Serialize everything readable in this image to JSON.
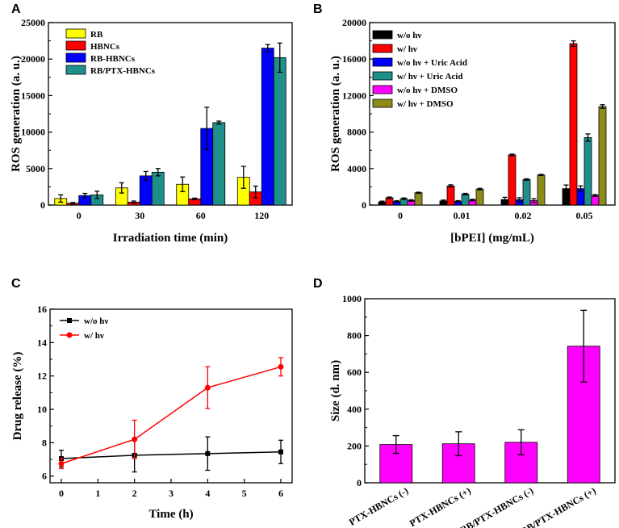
{
  "chart_data": [
    {
      "panel": "A",
      "type": "bar",
      "title": "",
      "xlabel": "Irradiation time (min)",
      "ylabel": "ROS generation (a. u.)",
      "ylim": [
        0,
        25000
      ],
      "yticks": [
        "0",
        "5000",
        "10000",
        "15000",
        "20000",
        "25000"
      ],
      "categories": [
        "0",
        "30",
        "60",
        "120"
      ],
      "legend_position": "top-left",
      "series": [
        {
          "name": "RB",
          "color": "#ffff00",
          "values": [
            900,
            2350,
            2850,
            3800
          ],
          "errors": [
            500,
            700,
            1000,
            1500
          ]
        },
        {
          "name": "HBNCs",
          "color": "#ff0000",
          "values": [
            250,
            400,
            850,
            1800
          ],
          "errors": [
            100,
            150,
            100,
            800
          ]
        },
        {
          "name": "RB-HBNCs",
          "color": "#0000ff",
          "values": [
            1300,
            4000,
            10500,
            21500
          ],
          "errors": [
            300,
            600,
            2900,
            500
          ]
        },
        {
          "name": "RB/PTX-HBNCs",
          "color": "#1f8f8a",
          "values": [
            1400,
            4500,
            11300,
            20200
          ],
          "errors": [
            500,
            500,
            200,
            2000
          ]
        }
      ]
    },
    {
      "panel": "B",
      "type": "bar",
      "title": "",
      "xlabel": "[bPEI] (mg/mL)",
      "ylabel": "ROS generation (a. u.)",
      "ylim": [
        0,
        20000
      ],
      "yticks": [
        "0",
        "4000",
        "8000",
        "12000",
        "16000",
        "20000"
      ],
      "categories": [
        "0",
        "0.01",
        "0.02",
        "0.05"
      ],
      "legend_position": "top-left",
      "series": [
        {
          "name": "w/o hν",
          "color": "#000000",
          "values": [
            350,
            450,
            600,
            1800
          ],
          "errors": [
            80,
            100,
            250,
            400
          ]
        },
        {
          "name": "w/   hν",
          "color": "#ff0000",
          "values": [
            800,
            2100,
            5500,
            17700
          ],
          "errors": [
            80,
            120,
            80,
            300
          ]
        },
        {
          "name": "w/o hν + Uric Acid",
          "color": "#0000ff",
          "values": [
            400,
            400,
            600,
            1800
          ],
          "errors": [
            80,
            80,
            200,
            300
          ]
        },
        {
          "name": "w/   hν + Uric Acid",
          "color": "#1f8f8a",
          "values": [
            700,
            1200,
            2800,
            7400
          ],
          "errors": [
            80,
            80,
            80,
            400
          ]
        },
        {
          "name": "w/o hν + DMSO",
          "color": "#ff00ff",
          "values": [
            500,
            550,
            500,
            1050
          ],
          "errors": [
            80,
            80,
            200,
            100
          ]
        },
        {
          "name": "w/   hν + DMSO",
          "color": "#8b8b1a",
          "values": [
            1350,
            1750,
            3300,
            10800
          ],
          "errors": [
            60,
            80,
            60,
            200
          ]
        }
      ]
    },
    {
      "panel": "C",
      "type": "line",
      "title": "",
      "xlabel": "Time (h)",
      "ylabel": "Drug release (%)",
      "xlim": [
        0,
        6
      ],
      "ylim": [
        5.6,
        16
      ],
      "xticks": [
        "0",
        "1",
        "2",
        "3",
        "4",
        "5",
        "6"
      ],
      "yticks": [
        "6",
        "8",
        "10",
        "12",
        "14",
        "16"
      ],
      "legend_position": "top-left",
      "series": [
        {
          "name": "w/o hν",
          "color": "#000000",
          "marker": "square",
          "x": [
            0,
            2,
            4,
            6
          ],
          "y": [
            7.05,
            7.25,
            7.35,
            7.45
          ],
          "errors": [
            0.5,
            1.0,
            1.0,
            0.7
          ]
        },
        {
          "name": "w/   hν",
          "color": "#ff0000",
          "marker": "circle",
          "x": [
            0,
            2,
            4,
            6
          ],
          "y": [
            6.75,
            8.2,
            11.3,
            12.55
          ],
          "errors": [
            0.3,
            1.15,
            1.25,
            0.55
          ]
        }
      ]
    },
    {
      "panel": "D",
      "type": "bar",
      "title": "",
      "xlabel": "",
      "ylabel": "Size (d. nm)",
      "ylim": [
        0,
        1000
      ],
      "yticks": [
        "0",
        "200",
        "400",
        "600",
        "800",
        "1000"
      ],
      "categories": [
        "PTX-HBNCs (-)",
        "PTX-HBNCs (+)",
        "RB/PTX-HBNCs (-)",
        "RB/PTX-HBNCs (+)"
      ],
      "series": [
        {
          "name": "Size",
          "color": "#ff00ff",
          "values": [
            208,
            212,
            220,
            742
          ],
          "errors": [
            48,
            65,
            68,
            195
          ]
        }
      ]
    }
  ]
}
